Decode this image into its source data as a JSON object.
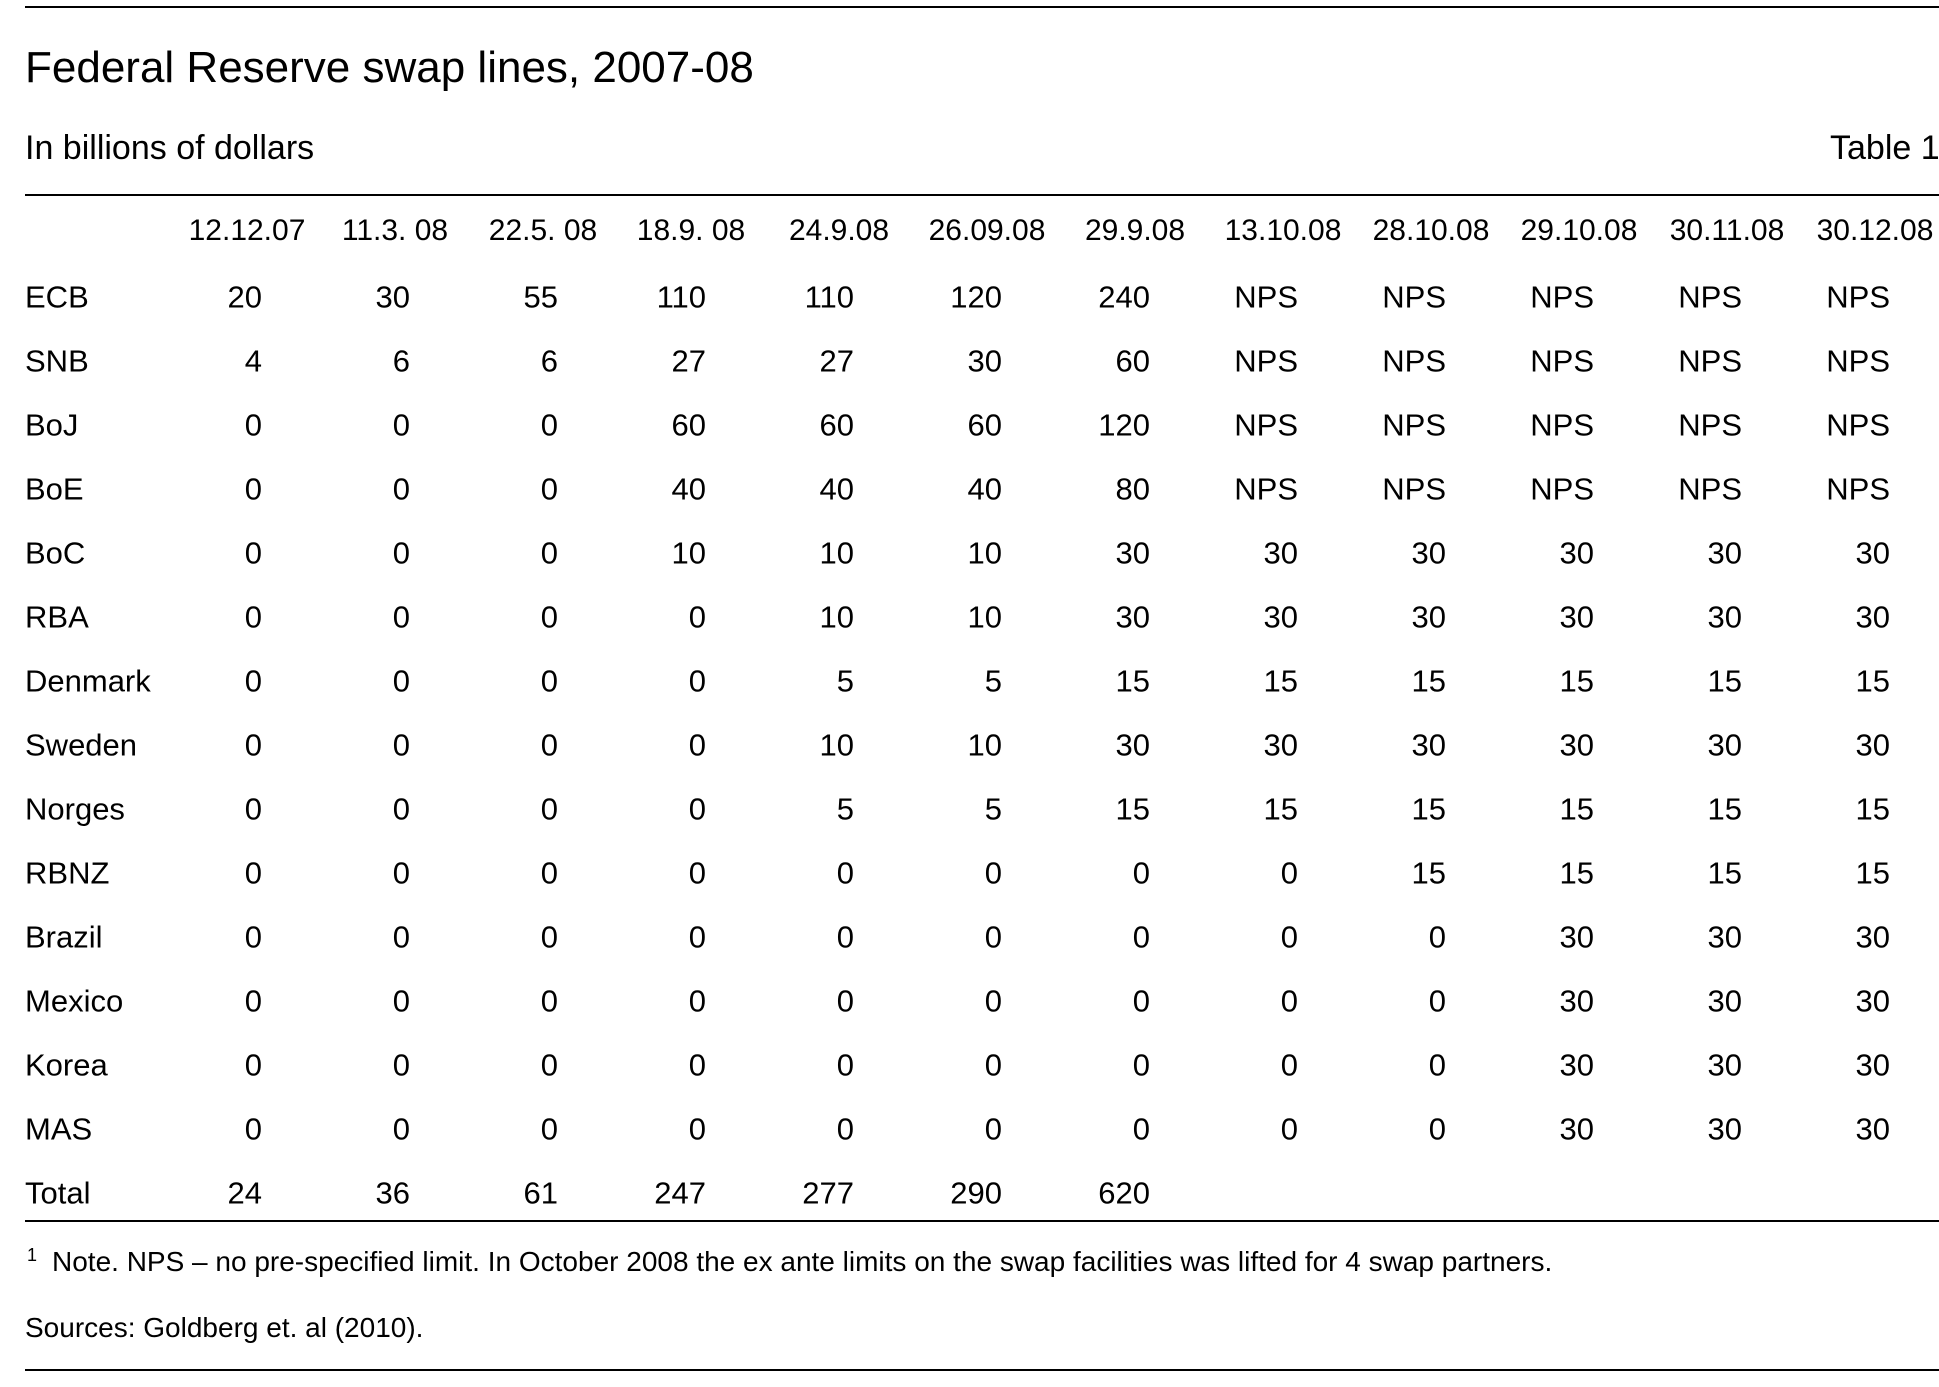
{
  "header": {
    "title": "Federal Reserve swap lines, 2007-08",
    "subtitle": "In billions of dollars",
    "label": "Table 1"
  },
  "table": {
    "columns": [
      "12.12.07",
      "11.3. 08",
      "22.5. 08",
      "18.9. 08",
      "24.9.08",
      "26.09.08",
      "29.9.08",
      "13.10.08",
      "28.10.08",
      "29.10.08",
      "30.11.08",
      "30.12.08"
    ],
    "rows": [
      [
        "ECB",
        "20",
        "30",
        "55",
        "110",
        "110",
        "120",
        "240",
        "NPS",
        "NPS",
        "NPS",
        "NPS",
        "NPS"
      ],
      [
        "SNB",
        "4",
        "6",
        "6",
        "27",
        "27",
        "30",
        "60",
        "NPS",
        "NPS",
        "NPS",
        "NPS",
        "NPS"
      ],
      [
        "BoJ",
        "0",
        "0",
        "0",
        "60",
        "60",
        "60",
        "120",
        "NPS",
        "NPS",
        "NPS",
        "NPS",
        "NPS"
      ],
      [
        "BoE",
        "0",
        "0",
        "0",
        "40",
        "40",
        "40",
        "80",
        "NPS",
        "NPS",
        "NPS",
        "NPS",
        "NPS"
      ],
      [
        "BoC",
        "0",
        "0",
        "0",
        "10",
        "10",
        "10",
        "30",
        "30",
        "30",
        "30",
        "30",
        "30"
      ],
      [
        "RBA",
        "0",
        "0",
        "0",
        "0",
        "10",
        "10",
        "30",
        "30",
        "30",
        "30",
        "30",
        "30"
      ],
      [
        "Denmark",
        "0",
        "0",
        "0",
        "0",
        "5",
        "5",
        "15",
        "15",
        "15",
        "15",
        "15",
        "15"
      ],
      [
        "Sweden",
        "0",
        "0",
        "0",
        "0",
        "10",
        "10",
        "30",
        "30",
        "30",
        "30",
        "30",
        "30"
      ],
      [
        "Norges",
        "0",
        "0",
        "0",
        "0",
        "5",
        "5",
        "15",
        "15",
        "15",
        "15",
        "15",
        "15"
      ],
      [
        "RBNZ",
        "0",
        "0",
        "0",
        "0",
        "0",
        "0",
        "0",
        "0",
        "15",
        "15",
        "15",
        "15"
      ],
      [
        "Brazil",
        "0",
        "0",
        "0",
        "0",
        "0",
        "0",
        "0",
        "0",
        "0",
        "30",
        "30",
        "30"
      ],
      [
        "Mexico",
        "0",
        "0",
        "0",
        "0",
        "0",
        "0",
        "0",
        "0",
        "0",
        "30",
        "30",
        "30"
      ],
      [
        "Korea",
        "0",
        "0",
        "0",
        "0",
        "0",
        "0",
        "0",
        "0",
        "0",
        "30",
        "30",
        "30"
      ],
      [
        "MAS",
        "0",
        "0",
        "0",
        "0",
        "0",
        "0",
        "0",
        "0",
        "0",
        "30",
        "30",
        "30"
      ],
      [
        "Total",
        "24",
        "36",
        "61",
        "247",
        "277",
        "290",
        "620"
      ]
    ]
  },
  "footnote": {
    "marker": "1",
    "text": "Note. NPS – no pre-specified limit. In October 2008 the ex ante limits on the swap facilities was lifted for 4 swap partners."
  },
  "sources": "Sources: Goldberg et. al (2010)."
}
